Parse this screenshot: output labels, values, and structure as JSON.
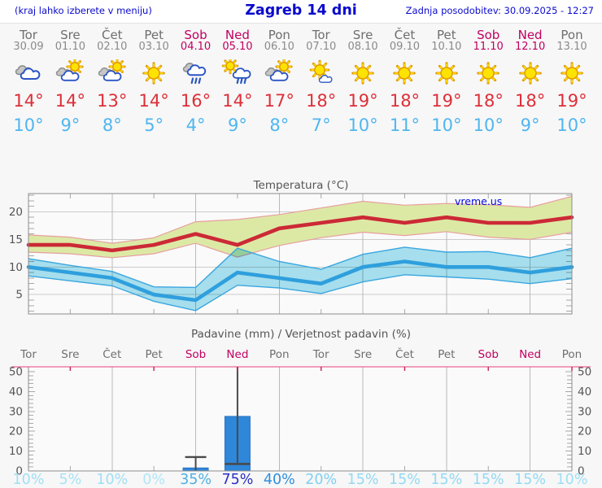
{
  "header": {
    "left_note": "(kraj lahko izberete v meniju)",
    "title": "Zagreb 14 dni",
    "updated": "Zadnja posodobitev: 30.09.2025 - 12:27"
  },
  "colors": {
    "header_text": "#0a0acd",
    "weekday": "#6e6e6e",
    "date": "#8a8a8a",
    "weekend": "#c00060",
    "tmax_text": "#dd2f38",
    "tmin_text": "#4fb6ef",
    "axis": "#8c8c8c",
    "grid": "#bbbbbb",
    "precip_top_axis": "#e8417f",
    "bar": "#2f87da"
  },
  "days": [
    {
      "name": "Tor",
      "date": "30.09",
      "weekend": false,
      "icon": "cloudy",
      "tmax": "14°",
      "tmin": "10°"
    },
    {
      "name": "Sre",
      "date": "01.10",
      "weekend": false,
      "icon": "partly",
      "tmax": "14°",
      "tmin": "9°"
    },
    {
      "name": "Čet",
      "date": "02.10",
      "weekend": false,
      "icon": "partly",
      "tmax": "13°",
      "tmin": "8°"
    },
    {
      "name": "Pet",
      "date": "03.10",
      "weekend": false,
      "icon": "sunny",
      "tmax": "14°",
      "tmin": "5°"
    },
    {
      "name": "Sob",
      "date": "04.10",
      "weekend": true,
      "icon": "rain",
      "tmax": "16°",
      "tmin": "4°"
    },
    {
      "name": "Ned",
      "date": "05.10",
      "weekend": true,
      "icon": "sun-rain",
      "tmax": "14°",
      "tmin": "9°"
    },
    {
      "name": "Pon",
      "date": "06.10",
      "weekend": false,
      "icon": "partly",
      "tmax": "17°",
      "tmin": "8°"
    },
    {
      "name": "Tor",
      "date": "07.10",
      "weekend": false,
      "icon": "sun-cloud",
      "tmax": "18°",
      "tmin": "7°"
    },
    {
      "name": "Sre",
      "date": "08.10",
      "weekend": false,
      "icon": "sunny",
      "tmax": "19°",
      "tmin": "10°"
    },
    {
      "name": "Čet",
      "date": "09.10",
      "weekend": false,
      "icon": "sunny",
      "tmax": "18°",
      "tmin": "11°"
    },
    {
      "name": "Pet",
      "date": "10.10",
      "weekend": false,
      "icon": "sunny",
      "tmax": "19°",
      "tmin": "10°"
    },
    {
      "name": "Sob",
      "date": "11.10",
      "weekend": true,
      "icon": "sunny",
      "tmax": "18°",
      "tmin": "10°"
    },
    {
      "name": "Ned",
      "date": "12.10",
      "weekend": true,
      "icon": "sunny",
      "tmax": "18°",
      "tmin": "9°"
    },
    {
      "name": "Pon",
      "date": "13.10",
      "weekend": false,
      "icon": "sunny",
      "tmax": "19°",
      "tmin": "10°"
    }
  ],
  "chart_data": [
    {
      "type": "line",
      "title": "Temperatura (°C)",
      "watermark": "vreme.us",
      "categories": [
        "Tor 30.09",
        "Sre 01.10",
        "Čet 02.10",
        "Pet 03.10",
        "Sob 04.10",
        "Ned 05.10",
        "Pon 06.10",
        "Tor 07.10",
        "Sre 08.10",
        "Čet 09.10",
        "Pet 10.10",
        "Sob 11.10",
        "Ned 12.10",
        "Pon 13.10"
      ],
      "ylim": [
        1.5,
        23.3
      ],
      "yticks": [
        5,
        10,
        15,
        20
      ],
      "grid": "vertical lines every 2 days, horizontal at yticks",
      "legend": "none",
      "series": [
        {
          "name": "max_temp",
          "color": "#cc2936",
          "values": [
            14,
            14,
            13,
            14,
            16,
            14,
            17,
            18,
            19,
            18,
            19,
            18,
            18,
            19
          ]
        },
        {
          "name": "max_band_upper",
          "color": "#dce9a5",
          "edge": "#e79f9f",
          "values": [
            15.8,
            15.4,
            14.3,
            15.3,
            18.2,
            18.6,
            19.5,
            20.7,
            21.9,
            21.2,
            21.5,
            21.3,
            20.8,
            22.8
          ]
        },
        {
          "name": "max_band_lower",
          "values": [
            12.7,
            12.4,
            11.7,
            12.4,
            14.3,
            11.8,
            13.9,
            15.3,
            16.3,
            15.7,
            16.4,
            15.4,
            15.0,
            16.3
          ]
        },
        {
          "name": "min_temp",
          "color": "#2f9fdd",
          "values": [
            10,
            9,
            8,
            5,
            4,
            9,
            8,
            7,
            10,
            11,
            10,
            10,
            9,
            10
          ]
        },
        {
          "name": "min_band_upper",
          "color": "#a9e3f2",
          "edge": "#3aa6df",
          "values": [
            11.5,
            10.3,
            9.2,
            6.4,
            6.3,
            13.4,
            11.0,
            9.6,
            12.3,
            13.6,
            12.7,
            12.8,
            11.7,
            13.4
          ]
        },
        {
          "name": "min_band_lower",
          "values": [
            8.4,
            7.5,
            6.6,
            3.8,
            2.1,
            6.7,
            6.2,
            5.2,
            7.3,
            8.6,
            8.2,
            7.8,
            7.0,
            7.9
          ]
        }
      ]
    },
    {
      "type": "bar",
      "title": "Padavine (mm) / Verjetnost padavin (%)",
      "categories": [
        {
          "label": "Tor",
          "weekend": false
        },
        {
          "label": "Sre",
          "weekend": false
        },
        {
          "label": "Čet",
          "weekend": false
        },
        {
          "label": "Pet",
          "weekend": false
        },
        {
          "label": "Sob",
          "weekend": true
        },
        {
          "label": "Ned",
          "weekend": true
        },
        {
          "label": "Pon",
          "weekend": false
        },
        {
          "label": "Tor",
          "weekend": false
        },
        {
          "label": "Sre",
          "weekend": false
        },
        {
          "label": "Čet",
          "weekend": false
        },
        {
          "label": "Pet",
          "weekend": false
        },
        {
          "label": "Sob",
          "weekend": true
        },
        {
          "label": "Ned",
          "weekend": true
        },
        {
          "label": "Pon",
          "weekend": false
        }
      ],
      "values": [
        0,
        0,
        0,
        0,
        1.5,
        27.5,
        0,
        0,
        0,
        0,
        0,
        0,
        0,
        0
      ],
      "whisker_high": [
        0,
        0,
        0,
        0,
        7,
        55,
        0,
        0,
        0,
        0,
        0,
        0,
        0,
        0
      ],
      "whisker_low": [
        0,
        0,
        0,
        0,
        0,
        3.5,
        0,
        0,
        0,
        0,
        0,
        0,
        0,
        0
      ],
      "ylim": [
        0,
        52.5
      ],
      "yticks": [
        0,
        10,
        20,
        30,
        40,
        50
      ],
      "bar_color": "#2f87da",
      "probabilities": [
        {
          "label": "10%",
          "color": "#9edff5"
        },
        {
          "label": "5%",
          "color": "#a8e2f6"
        },
        {
          "label": "10%",
          "color": "#9edff5"
        },
        {
          "label": "0%",
          "color": "#b0e5f8"
        },
        {
          "label": "35%",
          "color": "#4cb0e2"
        },
        {
          "label": "75%",
          "color": "#2b2fc4"
        },
        {
          "label": "40%",
          "color": "#2e8fdf"
        },
        {
          "label": "20%",
          "color": "#7fd0f0"
        },
        {
          "label": "15%",
          "color": "#93d9f3"
        },
        {
          "label": "15%",
          "color": "#93d9f3"
        },
        {
          "label": "15%",
          "color": "#93d9f3"
        },
        {
          "label": "15%",
          "color": "#93d9f3"
        },
        {
          "label": "15%",
          "color": "#93d9f3"
        },
        {
          "label": "10%",
          "color": "#9edff5"
        }
      ]
    }
  ]
}
